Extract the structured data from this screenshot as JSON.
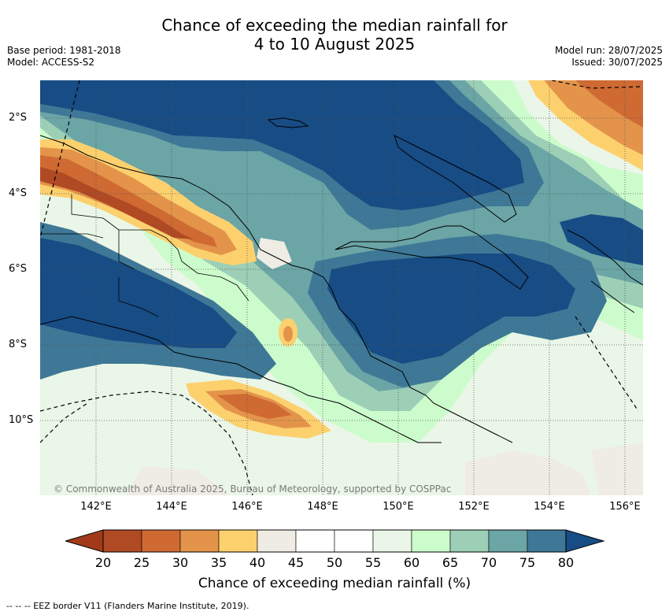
{
  "header": {
    "title_line1": "Chance of exceeding the median rainfall for",
    "title_line2": "4 to 10 August 2025",
    "base_period": "Base period: 1981-2018",
    "model": "Model: ACCESS-S2",
    "model_run": "Model run: 28/07/2025",
    "issued": "Issued: 30/07/2025"
  },
  "map": {
    "region": "Papua New Guinea",
    "lon_labels": [
      "142°E",
      "144°E",
      "146°E",
      "148°E",
      "150°E",
      "152°E",
      "154°E",
      "156°E"
    ],
    "lat_labels": [
      "2°S",
      "4°S",
      "6°S",
      "8°S",
      "10°S"
    ],
    "copyright": "© Commonwealth of Australia 2025, Bureau of Meteorology, supported by COSPPac"
  },
  "colorbar": {
    "ticks": [
      "20",
      "25",
      "30",
      "35",
      "40",
      "45",
      "50",
      "55",
      "60",
      "65",
      "70",
      "75",
      "80"
    ],
    "colors": [
      "#b04a24",
      "#cf6a33",
      "#e3944a",
      "#fdd06e",
      "#efece4",
      "#ffffff",
      "#ffffff",
      "#eaf6e7",
      "#ccfccc",
      "#9ccfb6",
      "#6ba5a6",
      "#3e7896"
    ],
    "under_color": "#a23a1a",
    "over_color": "#174c84",
    "label": "Chance of exceeding median rainfall (%)"
  },
  "footnote": "--  --  -- EEZ border V11 (Flanders Marine Institute, 2019)."
}
